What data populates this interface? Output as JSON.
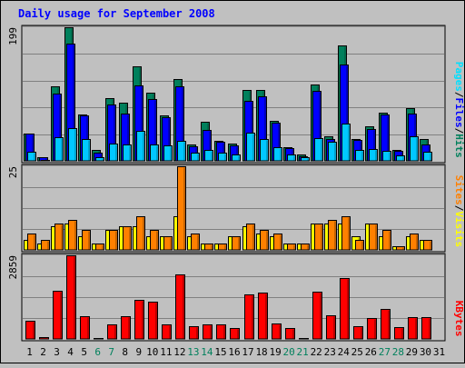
{
  "chart_data": {
    "type": "bar",
    "title": "Daily usage for September 2008",
    "categories": [
      "1",
      "2",
      "3",
      "4",
      "5",
      "6",
      "7",
      "8",
      "9",
      "10",
      "11",
      "12",
      "13",
      "14",
      "15",
      "16",
      "17",
      "18",
      "19",
      "20",
      "21",
      "22",
      "23",
      "24",
      "25",
      "26",
      "27",
      "28",
      "29",
      "30",
      "31"
    ],
    "weekend_days": [
      "6",
      "7",
      "13",
      "14",
      "20",
      "21",
      "27",
      "28"
    ],
    "panels": [
      {
        "id": "hits-files-pages",
        "ymax_label": "199",
        "ylim": [
          0,
          199
        ],
        "legend": [
          {
            "text": "Pages",
            "color": "#00e0ff"
          },
          {
            "text": "/",
            "color": "#000000"
          },
          {
            "text": "Files",
            "color": "#0000ff"
          },
          {
            "text": "/",
            "color": "#000000"
          },
          {
            "text": "Hits",
            "color": "#00805c"
          }
        ],
        "series": [
          {
            "name": "Hits",
            "color": "#00805c",
            "values": [
              41,
              6,
              111,
              199,
              69,
              16,
              93,
              86,
              141,
              101,
              68,
              122,
              25,
              58,
              30,
              26,
              105,
              105,
              59,
              20,
              9,
              114,
              36,
              172,
              33,
              51,
              72,
              16,
              79,
              32,
              0
            ]
          },
          {
            "name": "Files",
            "color": "#0000ff",
            "values": [
              40,
              5,
              100,
              175,
              68,
              12,
              84,
              70,
              112,
              92,
              65,
              111,
              22,
              46,
              28,
              23,
              90,
              96,
              57,
              19,
              7,
              104,
              33,
              143,
              31,
              48,
              69,
              15,
              71,
              25,
              0
            ]
          },
          {
            "name": "Pages",
            "color": "#00c8ff",
            "values": [
              13,
              2,
              35,
              49,
              33,
              6,
              26,
              25,
              45,
              25,
              23,
              30,
              12,
              16,
              12,
              10,
              42,
              33,
              20,
              10,
              5,
              34,
              28,
              56,
              16,
              18,
              15,
              8,
              37,
              14,
              0
            ]
          }
        ]
      },
      {
        "id": "visits-sites",
        "ymax_label": "25",
        "ylim": [
          0,
          25
        ],
        "legend": [
          {
            "text": "Sites",
            "color": "#ff8000"
          },
          {
            "text": "/",
            "color": "#000000"
          },
          {
            "text": "Visits",
            "color": "#ffff00"
          }
        ],
        "series": [
          {
            "name": "Visits",
            "color": "#ffff00",
            "values": [
              3,
              2,
              7,
              8,
              4,
              2,
              6,
              7,
              7,
              4,
              4,
              10,
              4,
              2,
              2,
              4,
              7,
              5,
              4,
              2,
              2,
              8,
              8,
              8,
              4,
              8,
              4,
              1,
              4,
              3,
              0
            ]
          },
          {
            "name": "Sites",
            "color": "#ff8000",
            "values": [
              5,
              3,
              8,
              9,
              6,
              2,
              6,
              7,
              10,
              6,
              4,
              25,
              5,
              2,
              2,
              4,
              8,
              6,
              5,
              2,
              2,
              8,
              9,
              10,
              3,
              8,
              6,
              1,
              5,
              3,
              0
            ]
          }
        ]
      },
      {
        "id": "kbytes",
        "ymax_label": "2859",
        "ylim": [
          0,
          2859
        ],
        "legend": [
          {
            "text": "KBytes",
            "color": "#ff0000"
          }
        ],
        "series": [
          {
            "name": "KBytes",
            "color": "#ff0000",
            "values": [
              630,
              50,
              1650,
              2859,
              780,
              10,
              510,
              780,
              1350,
              1270,
              500,
              2210,
              440,
              490,
              490,
              370,
              1530,
              1580,
              520,
              360,
              30,
              1620,
              820,
              2080,
              430,
              730,
              1010,
              400,
              760,
              740,
              0
            ]
          }
        ]
      }
    ]
  }
}
